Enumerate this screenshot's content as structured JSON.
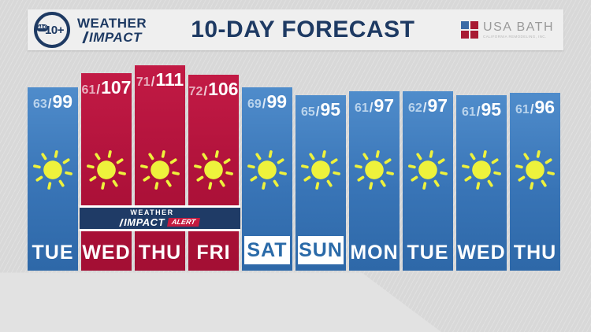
{
  "header": {
    "station": {
      "network": "abc",
      "channel": "10+"
    },
    "brand": {
      "line1": "WEATHER",
      "line2": "IMPACT"
    },
    "title": "10-DAY FORECAST",
    "sponsor": {
      "name": "USA BATH",
      "subtext": "CALIFORNIA REMODELING, INC."
    }
  },
  "alert_banner": {
    "line1": "WEATHER",
    "line2": "IMPACT",
    "badge": "ALERT"
  },
  "forecast": {
    "separator": "/",
    "days": [
      {
        "day": "TUE",
        "low": 63,
        "high": 99,
        "condition": "sunny",
        "type": "normal",
        "weekend": false
      },
      {
        "day": "WED",
        "low": 61,
        "high": 107,
        "condition": "sunny",
        "type": "alert",
        "weekend": false
      },
      {
        "day": "THU",
        "low": 71,
        "high": 111,
        "condition": "sunny",
        "type": "alert",
        "weekend": false
      },
      {
        "day": "FRI",
        "low": 72,
        "high": 106,
        "condition": "sunny",
        "type": "alert",
        "weekend": false
      },
      {
        "day": "SAT",
        "low": 69,
        "high": 99,
        "condition": "sunny",
        "type": "normal",
        "weekend": true
      },
      {
        "day": "SUN",
        "low": 65,
        "high": 95,
        "condition": "sunny",
        "type": "normal",
        "weekend": true
      },
      {
        "day": "MON",
        "low": 61,
        "high": 97,
        "condition": "sunny",
        "type": "normal",
        "weekend": false
      },
      {
        "day": "TUE",
        "low": 62,
        "high": 97,
        "condition": "sunny",
        "type": "normal",
        "weekend": false
      },
      {
        "day": "WED",
        "low": 61,
        "high": 95,
        "condition": "sunny",
        "type": "normal",
        "weekend": false
      },
      {
        "day": "THU",
        "low": 61,
        "high": 96,
        "condition": "sunny",
        "type": "normal",
        "weekend": false
      }
    ]
  },
  "chart_data": {
    "type": "bar",
    "title": "10-DAY FORECAST",
    "categories": [
      "TUE",
      "WED",
      "THU",
      "FRI",
      "SAT",
      "SUN",
      "MON",
      "TUE",
      "WED",
      "THU"
    ],
    "series": [
      {
        "name": "low",
        "values": [
          63,
          61,
          71,
          72,
          69,
          65,
          61,
          62,
          61,
          61
        ]
      },
      {
        "name": "high",
        "values": [
          99,
          107,
          111,
          106,
          99,
          95,
          97,
          97,
          95,
          96
        ]
      }
    ],
    "units": "F",
    "conditions": [
      "sunny",
      "sunny",
      "sunny",
      "sunny",
      "sunny",
      "sunny",
      "sunny",
      "sunny",
      "sunny",
      "sunny"
    ],
    "alert_categories_index": [
      1,
      2,
      3
    ],
    "annotation": "WEATHER IMPACT ALERT on WED THU FRI",
    "layout": "bar height proportional to high temp, bars bottom-aligned"
  },
  "colors": {
    "background": "#d8d8d8",
    "header_bg": "#efefef",
    "navy": "#1e3a63",
    "bar_blue": "#3874b6",
    "bar_red": "#ad1139",
    "alert_badge_red": "#c41a3f",
    "sun_yellow": "#eef23c",
    "weekend_label_blue": "#2a6aa8",
    "sponsor_blue": "#3a6ba5",
    "sponsor_red": "#a81a33"
  }
}
